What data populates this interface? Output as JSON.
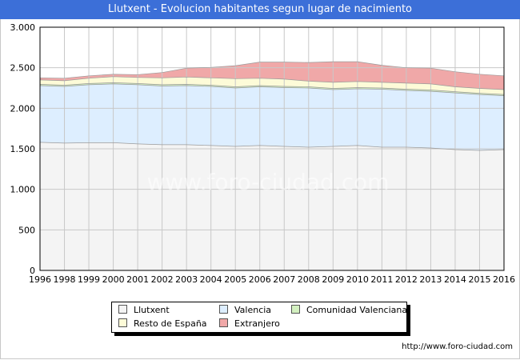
{
  "title": "Llutxent - Evolucion habitantes segun lugar de nacimiento",
  "footer": "http://www.foro-ciudad.com",
  "watermark": "www.foro-ciudad.com",
  "legend": {
    "llutxent": "Llutxent",
    "valencia": "Valencia",
    "comunidad": "Comunidad Valenciana",
    "resto": "Resto de España",
    "extranjero": "Extranjero"
  },
  "colors": {
    "llutxent": "#f4f4f4",
    "valencia": "#ddeeff",
    "comunidad": "#d3f0c0",
    "resto": "#fdfbd8",
    "extranjero": "#f0a8a8",
    "grid": "#c8c8c8",
    "title_bg": "#3c6fd8"
  },
  "chart_data": {
    "type": "area",
    "stacked": true,
    "title": "Llutxent - Evolucion habitantes segun lugar de nacimiento",
    "xlabel": "",
    "ylabel": "",
    "x": [
      1996,
      1998,
      1999,
      2000,
      2001,
      2002,
      2003,
      2004,
      2005,
      2006,
      2007,
      2008,
      2009,
      2010,
      2011,
      2012,
      2013,
      2014,
      2015,
      2016
    ],
    "x_ticks": [
      "1996",
      "1998",
      "1999",
      "2000",
      "2001",
      "2002",
      "2003",
      "2004",
      "2005",
      "2006",
      "2007",
      "2008",
      "2009",
      "2010",
      "2011",
      "2012",
      "2013",
      "2014",
      "2015",
      "2016"
    ],
    "ylim": [
      0,
      3000
    ],
    "y_ticks": [
      0,
      500,
      1000,
      1500,
      2000,
      2500,
      3000
    ],
    "y_tick_labels": [
      "0",
      "500",
      "1.000",
      "1.500",
      "2.000",
      "2.500",
      "3.000"
    ],
    "grid": true,
    "legend_position": "bottom",
    "series": [
      {
        "name": "Llutxent",
        "key": "llutxent",
        "values": [
          1580,
          1570,
          1575,
          1575,
          1560,
          1550,
          1550,
          1540,
          1530,
          1540,
          1530,
          1520,
          1530,
          1540,
          1520,
          1520,
          1510,
          1490,
          1480,
          1490
        ]
      },
      {
        "name": "Valencia",
        "key": "valencia",
        "values": [
          700,
          700,
          715,
          725,
          730,
          725,
          730,
          730,
          720,
          725,
          725,
          730,
          700,
          700,
          715,
          700,
          700,
          700,
          690,
          665
        ]
      },
      {
        "name": "Comunidad Valenciana",
        "key": "comunidad",
        "values": [
          15,
          15,
          15,
          15,
          15,
          15,
          15,
          15,
          15,
          15,
          15,
          15,
          15,
          15,
          15,
          15,
          15,
          15,
          15,
          15
        ]
      },
      {
        "name": "Resto de España",
        "key": "resto",
        "values": [
          55,
          55,
          65,
          75,
          75,
          85,
          90,
          90,
          100,
          90,
          90,
          70,
          75,
          75,
          70,
          75,
          75,
          60,
          60,
          60
        ]
      },
      {
        "name": "Extranjero",
        "key": "extranjero",
        "values": [
          25,
          30,
          30,
          30,
          35,
          65,
          110,
          130,
          160,
          200,
          210,
          230,
          255,
          245,
          210,
          190,
          195,
          185,
          175,
          170
        ]
      }
    ]
  }
}
